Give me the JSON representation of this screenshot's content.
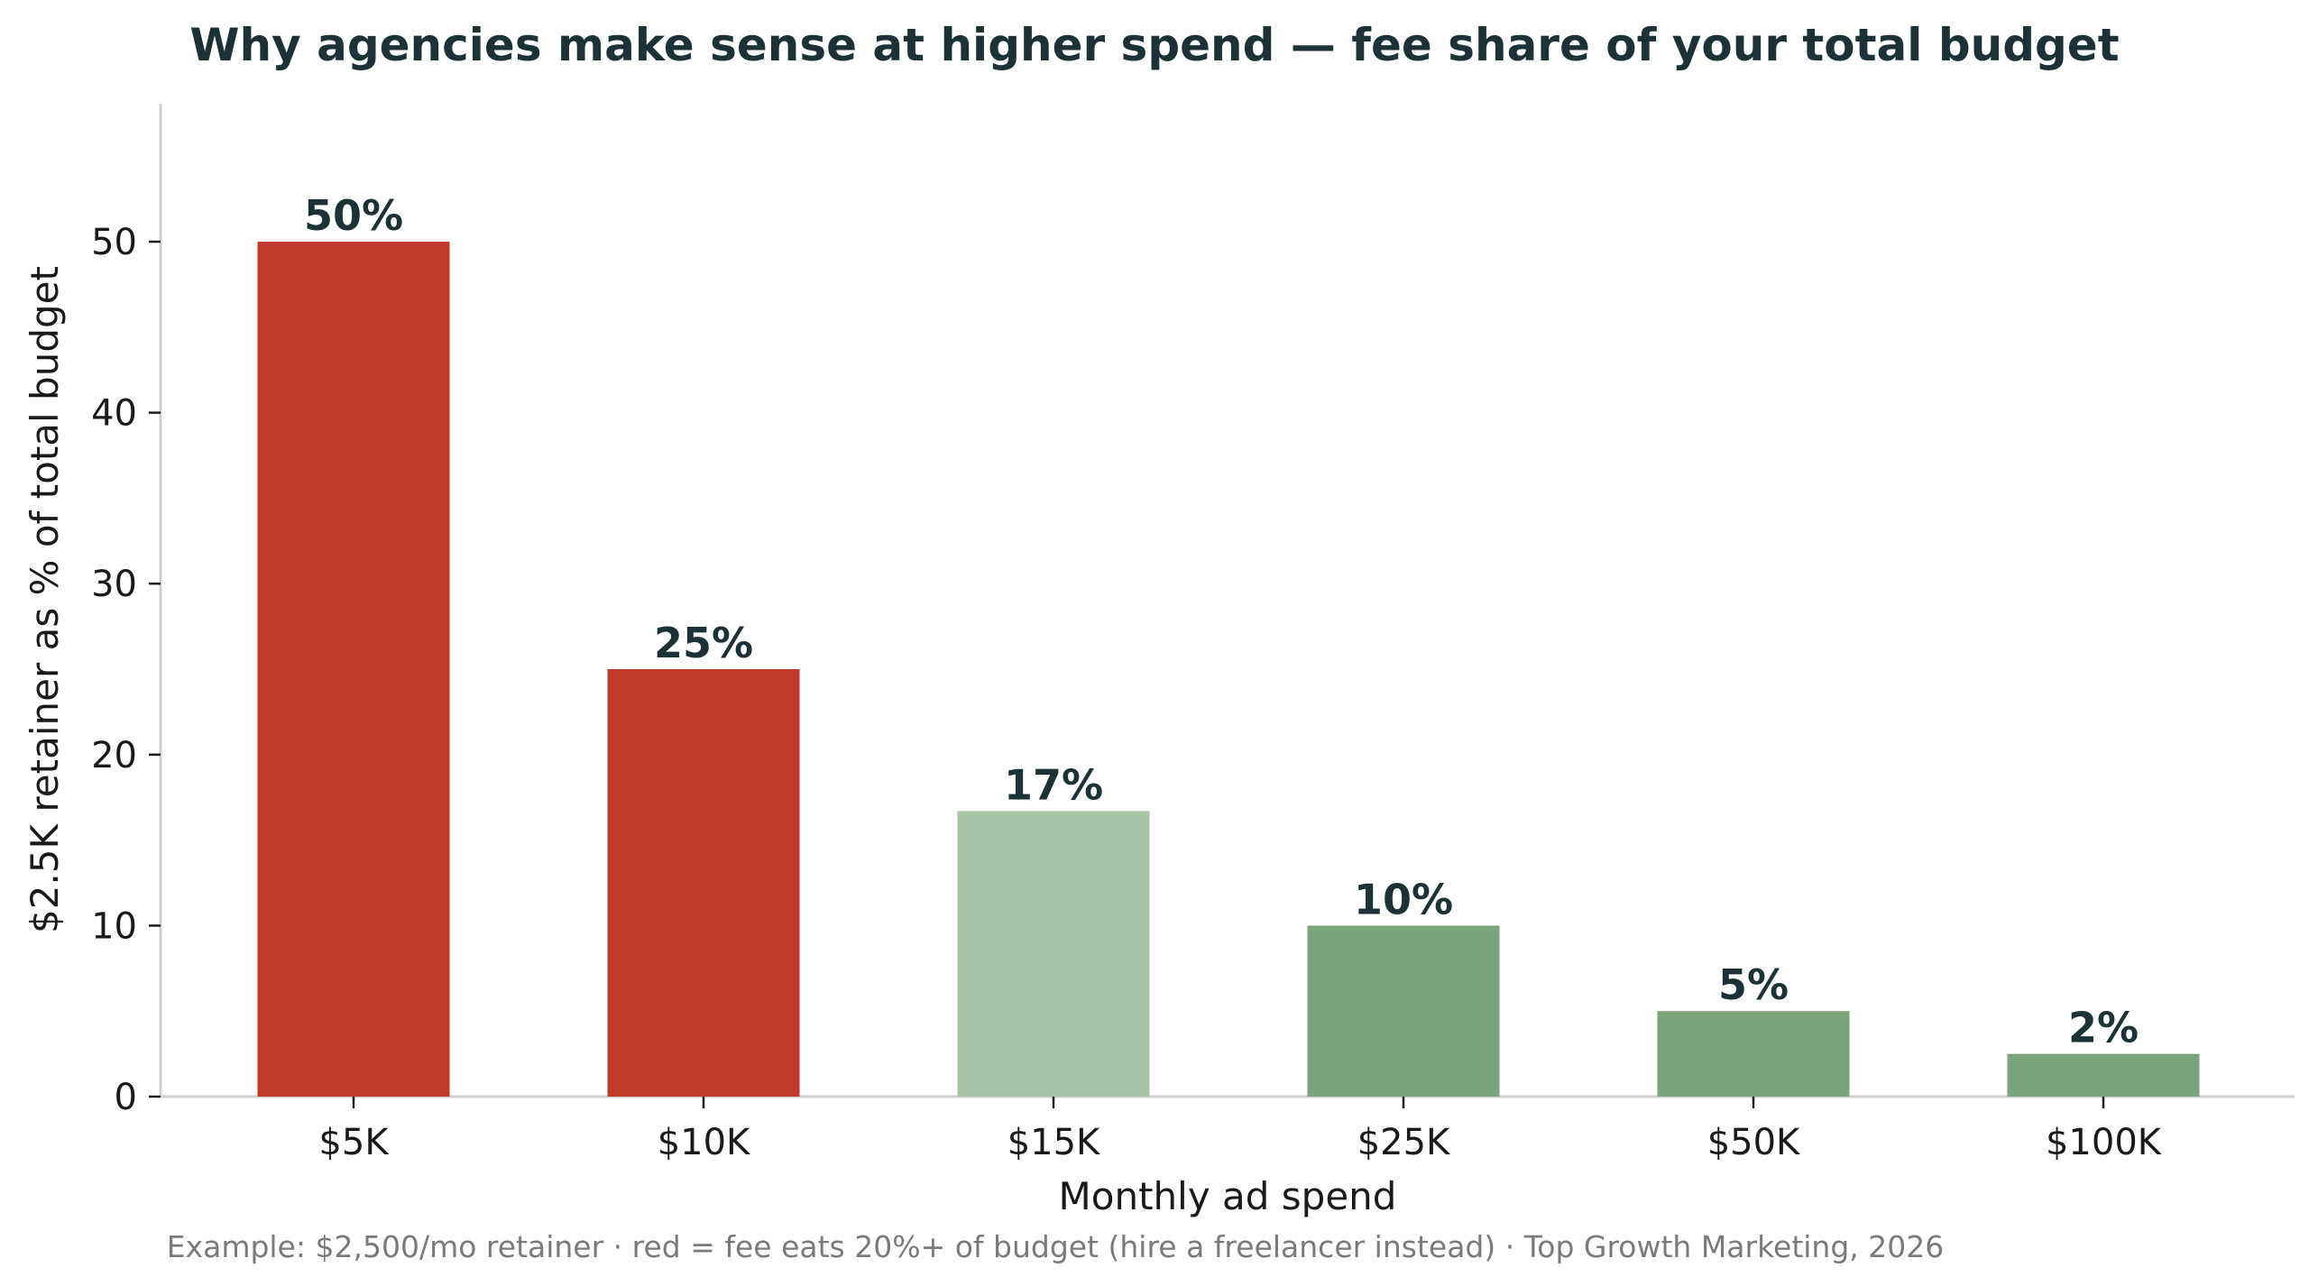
{
  "chart_data": {
    "type": "bar",
    "title": "Why agencies make sense at higher spend — fee share of your total budget",
    "xlabel": "Monthly ad spend",
    "ylabel": "$2.5K retainer as % of total budget",
    "caption": "Example: $2,500/mo retainer · red = fee eats 20%+ of budget (hire a freelancer instead) · Top Growth Marketing, 2026",
    "categories": [
      "$5K",
      "$10K",
      "$15K",
      "$25K",
      "$50K",
      "$100K"
    ],
    "values": [
      50,
      25,
      16.7,
      10,
      5,
      2.5
    ],
    "data_labels": [
      "50%",
      "25%",
      "17%",
      "10%",
      "5%",
      "2%"
    ],
    "bar_colors": [
      "#c0392b",
      "#c0392b",
      "#a8c5a8",
      "#7aa57c",
      "#7aa57c",
      "#7aa57c"
    ],
    "yticks": [
      0,
      10,
      20,
      30,
      40,
      50
    ],
    "ylim": [
      0,
      58
    ],
    "grid": false,
    "legend": "none"
  }
}
